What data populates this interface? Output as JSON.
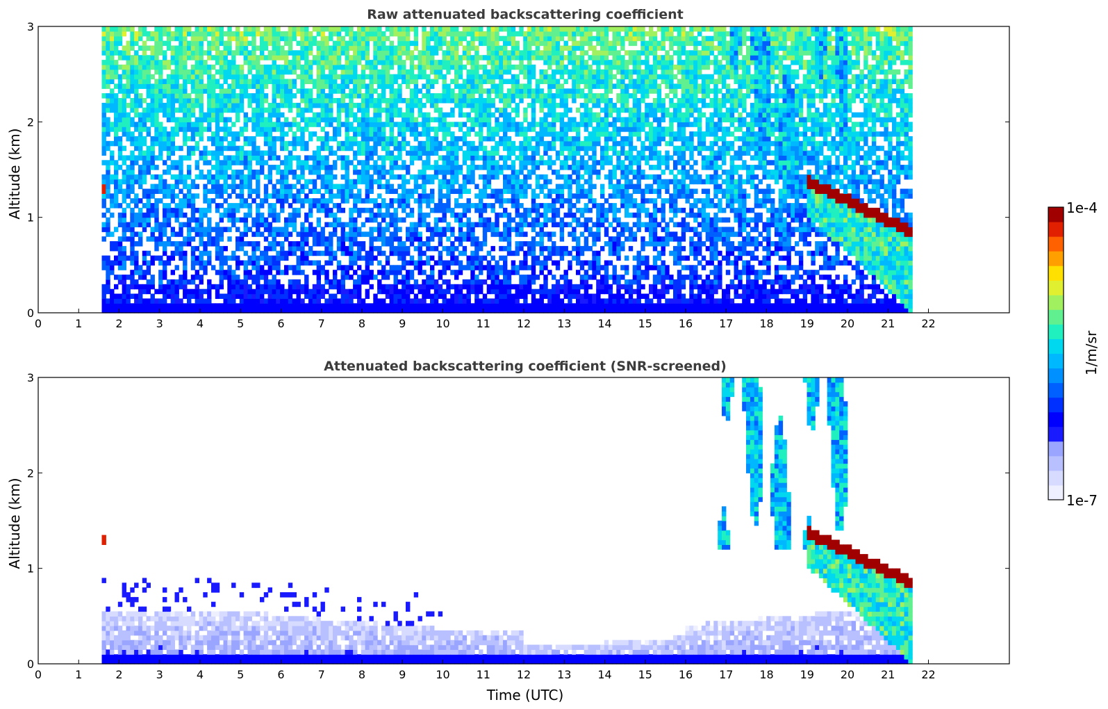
{
  "colors": {
    "colormap": [
      "#eef0ff",
      "#d6dbff",
      "#b8c0ff",
      "#9aa5ff",
      "#1a1aff",
      "#0000ff",
      "#0030ff",
      "#0060ff",
      "#0090ff",
      "#00b8ff",
      "#00d8f0",
      "#20f0c0",
      "#60f090",
      "#a0f060",
      "#e0f030",
      "#ffe000",
      "#ffa000",
      "#ff6000",
      "#e02000",
      "#a00000"
    ],
    "axis": "#000000"
  },
  "chart_data": [
    {
      "type": "heatmap",
      "title": "Raw attenuated backscattering coefficient",
      "xlabel": "",
      "ylabel": "Altitude (km)",
      "xlim": [
        0,
        24
      ],
      "ylim": [
        0,
        3
      ],
      "xticks": [
        "0",
        "1",
        "2",
        "3",
        "4",
        "5",
        "6",
        "7",
        "8",
        "9",
        "10",
        "11",
        "12",
        "13",
        "14",
        "15",
        "16",
        "17",
        "18",
        "19",
        "20",
        "21",
        "22"
      ],
      "yticks": [
        "0",
        "1",
        "2",
        "3"
      ],
      "data_time_range": [
        1.57,
        21.6
      ],
      "features": [
        {
          "kind": "noise-background",
          "time": [
            1.57,
            21.6
          ],
          "altitude": [
            0,
            3
          ]
        },
        {
          "kind": "cloud-layer",
          "time": [
            19.0,
            21.6
          ],
          "altitude_start": 1.38,
          "altitude_end": 0.85,
          "peak_log10": -4.0
        },
        {
          "kind": "precipitation-streaks",
          "time": [
            17.0,
            20.0
          ],
          "altitude": [
            1.2,
            3.0
          ],
          "peak_log10": -5.2
        },
        {
          "kind": "small-feature",
          "time": 1.6,
          "altitude": 1.3
        }
      ],
      "grid": false
    },
    {
      "type": "heatmap",
      "title": "Attenuated backscattering coefficient (SNR-screened)",
      "xlabel": "Time (UTC)",
      "ylabel": "Altitude (km)",
      "xlim": [
        0,
        24
      ],
      "ylim": [
        0,
        3
      ],
      "xticks": [
        "0",
        "1",
        "2",
        "3",
        "4",
        "5",
        "6",
        "7",
        "8",
        "9",
        "10",
        "11",
        "12",
        "13",
        "14",
        "15",
        "16",
        "17",
        "18",
        "19",
        "20",
        "21",
        "22"
      ],
      "yticks": [
        "0",
        "1",
        "2",
        "3"
      ],
      "data_time_range": [
        1.57,
        21.6
      ],
      "features": [
        {
          "kind": "boundary-layer",
          "time": [
            1.57,
            21.6
          ],
          "altitude": [
            0,
            0.6
          ]
        },
        {
          "kind": "cloud-layer",
          "time": [
            19.0,
            21.6
          ],
          "altitude_start": 1.38,
          "altitude_end": 0.85,
          "peak_log10": -4.0
        },
        {
          "kind": "precipitation-streaks",
          "time": [
            16.8,
            20.0
          ],
          "altitude": [
            1.2,
            3.0
          ],
          "peak_log10": -5.2
        },
        {
          "kind": "small-feature",
          "time": 1.6,
          "altitude": 1.3
        }
      ],
      "grid": false
    }
  ],
  "colorbar": {
    "label": "1/m/sr",
    "max_label": "1e-4",
    "min_label": "1e-7",
    "range_log10": [
      -7,
      -4
    ]
  }
}
